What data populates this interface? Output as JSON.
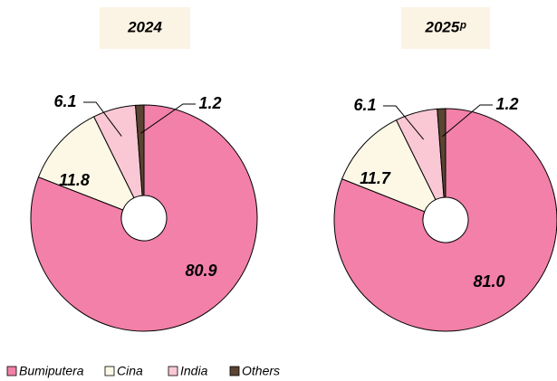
{
  "chart_data": [
    {
      "type": "pie",
      "title": "2024",
      "categories": [
        "Bumiputera",
        "Cina",
        "India",
        "Others"
      ],
      "values": [
        80.9,
        11.8,
        6.1,
        1.2
      ],
      "value_labels": [
        "80.9",
        "11.8",
        "6.1",
        "1.2"
      ],
      "colors": [
        "#f280a8",
        "#fdf8e6",
        "#f9c8d4",
        "#5b4431"
      ],
      "legend": "bottom"
    },
    {
      "type": "pie",
      "title": "2025ᵖ",
      "categories": [
        "Bumiputera",
        "Cina",
        "India",
        "Others"
      ],
      "values": [
        81.0,
        11.7,
        6.1,
        1.2
      ],
      "value_labels": [
        "81.0",
        "11.7",
        "6.1",
        "1.2"
      ],
      "colors": [
        "#f280a8",
        "#fdf8e6",
        "#f9c8d4",
        "#5b4431"
      ]
    }
  ]
}
